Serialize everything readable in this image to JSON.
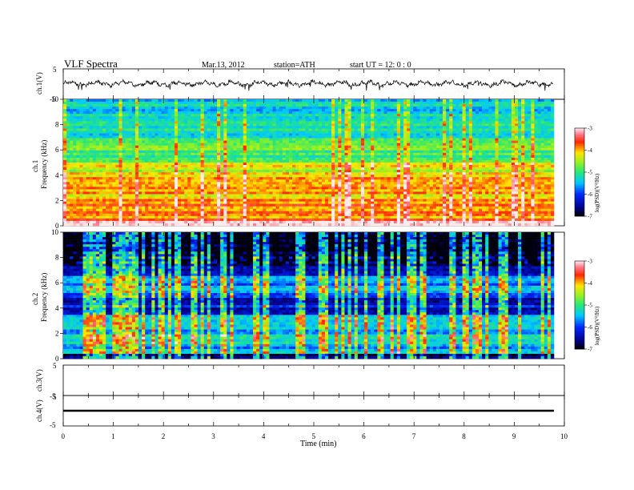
{
  "header": {
    "title": "VLF  Spectra",
    "date": "Mar.13, 2012",
    "station": "station=ATH",
    "start": "start  UT  =    12: 0  : 0"
  },
  "chart_data": [
    {
      "id": "ch1-waveform",
      "type": "line",
      "ylabel": "ch.1(V)",
      "ylim": [
        -5,
        5
      ],
      "yticks": [
        "5",
        "-5"
      ],
      "xlim": [
        0,
        10
      ],
      "note": "dense noisy voltage trace, approximately centered near 0 V, roughly -1 to 1.5 V amplitude"
    },
    {
      "id": "ch1-spectrogram",
      "type": "heatmap",
      "ylabel": "Frequency  (kHz)",
      "channel_label": "ch.1",
      "ylim": [
        0,
        10
      ],
      "yticks": [
        "0",
        "2",
        "4",
        "6",
        "8",
        "10"
      ],
      "xlim": [
        0,
        9.8
      ],
      "colorbar": {
        "label": "log(PSD)(V²/Hz)",
        "range": [
          -7,
          -3
        ],
        "ticks": [
          "-3",
          "-4",
          "-5",
          "-6",
          "-7"
        ]
      },
      "bands": [
        {
          "f": [
            0,
            0.3
          ],
          "v": -3.3
        },
        {
          "f": [
            0.3,
            2.2
          ],
          "v": -3.8
        },
        {
          "f": [
            2.2,
            4.2
          ],
          "v": -4.0
        },
        {
          "f": [
            4.2,
            5.0
          ],
          "v": -4.4
        },
        {
          "f": [
            5.0,
            6.5
          ],
          "v": -4.9
        },
        {
          "f": [
            6.5,
            8.5
          ],
          "v": -5.2
        },
        {
          "f": [
            8.5,
            10
          ],
          "v": -5.4
        }
      ]
    },
    {
      "id": "ch2-spectrogram",
      "type": "heatmap",
      "ylabel": "Frequency  (kHz)",
      "channel_label": "ch.2",
      "ylim": [
        0,
        10
      ],
      "yticks": [
        "0",
        "2",
        "4",
        "6",
        "8",
        "10"
      ],
      "xlim": [
        0,
        9.8
      ],
      "colorbar": {
        "label": "log(PSD)(V²/Hz)",
        "range": [
          -7,
          -3
        ],
        "ticks": [
          "-3",
          "-4",
          "-5",
          "-6",
          "-7"
        ]
      },
      "bands": [
        {
          "f": [
            0,
            0.3
          ],
          "v": -6.8
        },
        {
          "f": [
            0.3,
            1.0
          ],
          "v": -5.6
        },
        {
          "f": [
            1.0,
            2.0
          ],
          "v": -5.2
        },
        {
          "f": [
            2.0,
            3.5
          ],
          "v": -5.5
        },
        {
          "f": [
            3.5,
            5.0
          ],
          "v": -6.2
        },
        {
          "f": [
            5.0,
            6.5
          ],
          "v": -5.7
        },
        {
          "f": [
            6.5,
            8.0
          ],
          "v": -6.5
        },
        {
          "f": [
            8.0,
            10
          ],
          "v": -6.9
        }
      ]
    },
    {
      "id": "ch3-waveform",
      "type": "line",
      "ylabel": "ch.3(V)",
      "ylim": [
        -5,
        5
      ],
      "yticks": [
        "5",
        "-5"
      ],
      "note": "no signal"
    },
    {
      "id": "ch4-waveform",
      "type": "line",
      "ylabel": "ch.4(V)",
      "ylim": [
        -5,
        5
      ],
      "yticks": [
        "5",
        "-5"
      ],
      "note": "flat trace near 0 V"
    }
  ],
  "xaxis": {
    "label": "Time  (min)",
    "ticks": [
      "0",
      "1",
      "2",
      "3",
      "4",
      "5",
      "6",
      "7",
      "8",
      "9",
      "10"
    ],
    "range": [
      0,
      10
    ]
  }
}
